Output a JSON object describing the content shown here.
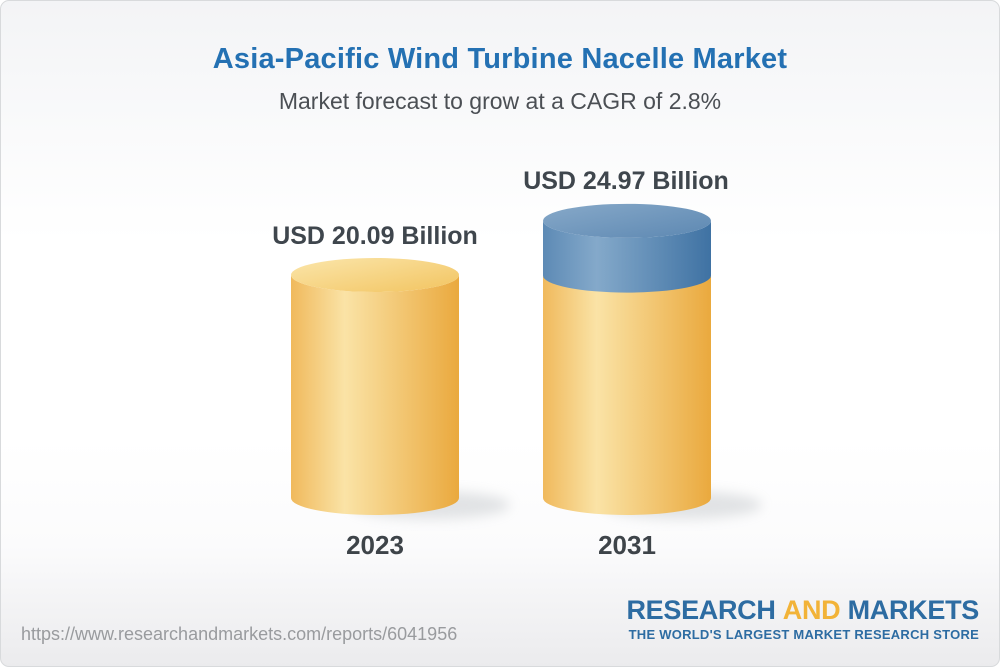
{
  "header": {
    "title": "Asia-Pacific Wind Turbine Nacelle Market",
    "subtitle": "Market forecast to grow at a CAGR of 2.8%",
    "cagr": "2.8%"
  },
  "chart_data": {
    "type": "bar",
    "variant": "3d-cylinder",
    "title": "Asia-Pacific Wind Turbine Nacelle Market",
    "subtitle": "Market forecast to grow at a CAGR of 2.8%",
    "categories": [
      "2023",
      "2031"
    ],
    "values": [
      20.09,
      24.97
    ],
    "value_labels": [
      "USD 20.09 Billion",
      "USD 24.97 Billion"
    ],
    "unit": "USD Billion",
    "growth_segment": {
      "from": 20.09,
      "to": 24.97
    },
    "legend": "none",
    "colors": {
      "base_light": "#FAE3A6",
      "base_edge_left": "#F0B95C",
      "base_edge_right": "#EAA93E",
      "base_top_light": "#FBE6AB",
      "base_top_dark": "#F2C460",
      "growth_light": "#84A9CA",
      "growth_edge_left": "#5D8AB5",
      "growth_edge_right": "#3F72A3",
      "growth_top_light": "#87A9C9",
      "growth_top_dark": "#5D88B2",
      "label_text": "#3F464D",
      "title_blue": "#2471B3"
    }
  },
  "footer": {
    "url": "https://www.researchandmarkets.com/reports/6041956",
    "logo": {
      "word1": "RESEARCH",
      "word2": "AND",
      "word3": "MARKETS",
      "tagline": "THE WORLD'S LARGEST MARKET RESEARCH STORE",
      "blue": "#2D6CA2",
      "gold": "#F2B338"
    }
  }
}
